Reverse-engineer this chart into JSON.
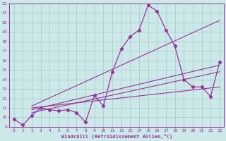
{
  "xlabel": "Windchill (Refroidissement éolien,°C)",
  "xlim": [
    -0.5,
    23.5
  ],
  "ylim": [
    9,
    22
  ],
  "yticks": [
    9,
    10,
    11,
    12,
    13,
    14,
    15,
    16,
    17,
    18,
    19,
    20,
    21,
    22
  ],
  "xticks": [
    0,
    1,
    2,
    3,
    4,
    5,
    6,
    7,
    8,
    9,
    10,
    11,
    12,
    13,
    14,
    15,
    16,
    17,
    18,
    19,
    20,
    21,
    22,
    23
  ],
  "bg_color": "#cce8e8",
  "grid_color": "#aacece",
  "line_color": "#993399",
  "main_line_x": [
    0,
    1,
    2,
    3,
    4,
    5,
    6,
    7,
    8,
    9,
    10,
    11,
    12,
    13,
    14,
    15,
    16,
    17,
    18,
    19,
    20,
    21,
    22,
    23
  ],
  "main_line_y": [
    9.8,
    9.2,
    10.2,
    11.0,
    10.8,
    10.7,
    10.8,
    10.5,
    9.5,
    12.3,
    11.2,
    14.8,
    17.2,
    18.5,
    19.2,
    21.8,
    21.2,
    19.2,
    17.5,
    14.0,
    13.2,
    13.2,
    12.2,
    15.8
  ],
  "trend1_x": [
    2,
    23
  ],
  "trend1_y": [
    10.5,
    14.8
  ],
  "trend2_x": [
    2,
    23
  ],
  "trend2_y": [
    10.8,
    15.5
  ],
  "trend3_x": [
    2,
    23
  ],
  "trend3_y": [
    11.2,
    20.2
  ],
  "trend4_x": [
    2,
    23
  ],
  "trend4_y": [
    11.0,
    13.2
  ]
}
